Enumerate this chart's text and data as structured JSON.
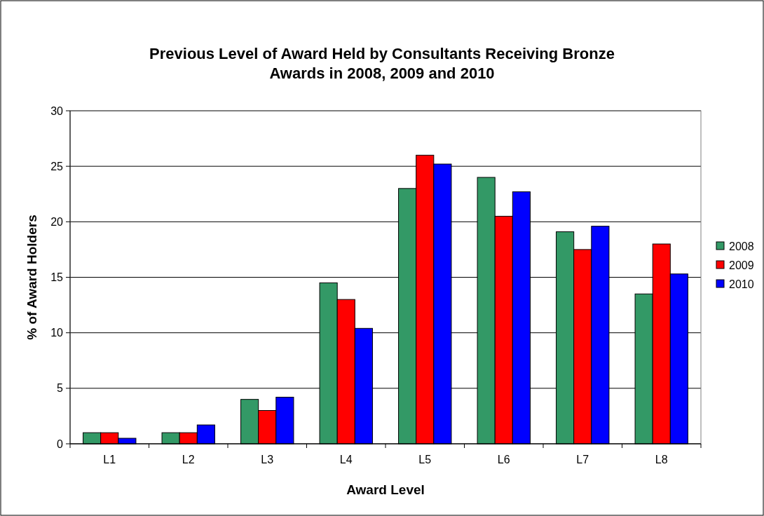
{
  "chart_data": {
    "type": "bar",
    "title": "Previous Level of Award Held by Consultants Receiving Bronze Awards in 2008, 2009 and 2010",
    "xlabel": "Award Level",
    "ylabel": "% of Award Holders",
    "categories": [
      "L1",
      "L2",
      "L3",
      "L4",
      "L5",
      "L6",
      "L7",
      "L8"
    ],
    "series": [
      {
        "name": "2008",
        "color": "#339966",
        "values": [
          1,
          1,
          4,
          14.5,
          23,
          24,
          19.1,
          13.5
        ]
      },
      {
        "name": "2009",
        "color": "#ff0000",
        "values": [
          1,
          1,
          3,
          13,
          26,
          20.5,
          17.5,
          18
        ]
      },
      {
        "name": "2010",
        "color": "#0000ff",
        "values": [
          0.5,
          1.7,
          4.2,
          10.4,
          25.2,
          22.7,
          19.6,
          15.3
        ]
      }
    ],
    "ylim": [
      0,
      30
    ],
    "yticks": [
      0,
      5,
      10,
      15,
      20,
      25,
      30
    ],
    "grid": "y",
    "legend": "right"
  }
}
